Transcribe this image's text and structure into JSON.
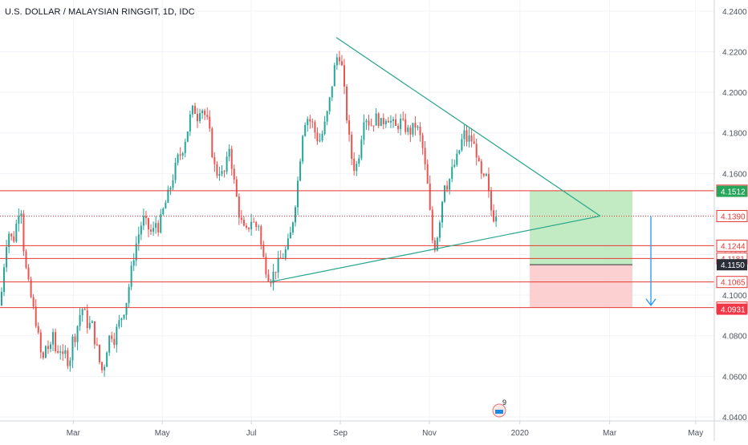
{
  "chart_data": {
    "type": "candlestick",
    "title": "U.S. DOLLAR / MALAYSIAN RINGGIT, 1D, IDC",
    "y_ticks": [
      4.04,
      4.06,
      4.08,
      4.1,
      4.12,
      4.14,
      4.16,
      4.18,
      4.2,
      4.22,
      4.24
    ],
    "y_tick_labels": [
      "4.0400",
      "4.0600",
      "4.0800",
      "4.1000",
      "4.1200",
      "4.1400",
      "4.1600",
      "4.1800",
      "4.2000",
      "4.2200",
      "4.2400"
    ],
    "ylim": [
      4.038,
      4.2455
    ],
    "x_labels": [
      {
        "label": "Mar",
        "pos": 0.098
      },
      {
        "label": "May",
        "pos": 0.217
      },
      {
        "label": "Jul",
        "pos": 0.336
      },
      {
        "label": "Sep",
        "pos": 0.455
      },
      {
        "label": "Nov",
        "pos": 0.574
      },
      {
        "label": "2020",
        "pos": 0.695
      },
      {
        "label": "Mar",
        "pos": 0.815
      },
      {
        "label": "May",
        "pos": 0.93
      }
    ],
    "close_path": [
      [
        0,
        4.095
      ],
      [
        3,
        4.105
      ],
      [
        6,
        4.12
      ],
      [
        10,
        4.132
      ],
      [
        14,
        4.128
      ],
      [
        18,
        4.128
      ],
      [
        22,
        4.14
      ],
      [
        26,
        4.145
      ],
      [
        30,
        4.12
      ],
      [
        34,
        4.108
      ],
      [
        38,
        4.1
      ],
      [
        42,
        4.092
      ],
      [
        46,
        4.085
      ],
      [
        50,
        4.072
      ],
      [
        54,
        4.068
      ],
      [
        58,
        4.078
      ],
      [
        62,
        4.07
      ],
      [
        66,
        4.082
      ],
      [
        70,
        4.07
      ],
      [
        74,
        4.076
      ],
      [
        78,
        4.068
      ],
      [
        82,
        4.072
      ],
      [
        86,
        4.065
      ],
      [
        90,
        4.078
      ],
      [
        94,
        4.08
      ],
      [
        98,
        4.088
      ],
      [
        102,
        4.094
      ],
      [
        106,
        4.09
      ],
      [
        110,
        4.084
      ],
      [
        114,
        4.087
      ],
      [
        118,
        4.078
      ],
      [
        122,
        4.072
      ],
      [
        126,
        4.062
      ],
      [
        130,
        4.066
      ],
      [
        134,
        4.076
      ],
      [
        138,
        4.082
      ],
      [
        142,
        4.078
      ],
      [
        146,
        4.084
      ],
      [
        150,
        4.088
      ],
      [
        154,
        4.092
      ],
      [
        158,
        4.098
      ],
      [
        162,
        4.108
      ],
      [
        166,
        4.118
      ],
      [
        170,
        4.126
      ],
      [
        174,
        4.132
      ],
      [
        178,
        4.138
      ],
      [
        182,
        4.135
      ],
      [
        186,
        4.132
      ],
      [
        190,
        4.13
      ],
      [
        194,
        4.136
      ],
      [
        198,
        4.133
      ],
      [
        202,
        4.14
      ],
      [
        206,
        4.145
      ],
      [
        210,
        4.15
      ],
      [
        214,
        4.156
      ],
      [
        218,
        4.162
      ],
      [
        222,
        4.168
      ],
      [
        226,
        4.17
      ],
      [
        230,
        4.176
      ],
      [
        234,
        4.182
      ],
      [
        238,
        4.19
      ],
      [
        242,
        4.192
      ],
      [
        246,
        4.188
      ],
      [
        250,
        4.194
      ],
      [
        254,
        4.19
      ],
      [
        258,
        4.186
      ],
      [
        262,
        4.178
      ],
      [
        266,
        4.165
      ],
      [
        270,
        4.16
      ],
      [
        274,
        4.162
      ],
      [
        278,
        4.158
      ],
      [
        282,
        4.164
      ],
      [
        286,
        4.174
      ],
      [
        290,
        4.16
      ],
      [
        294,
        4.15
      ],
      [
        298,
        4.14
      ],
      [
        302,
        4.134
      ],
      [
        306,
        4.13
      ],
      [
        310,
        4.134
      ],
      [
        314,
        4.138
      ],
      [
        318,
        4.133
      ],
      [
        322,
        4.136
      ],
      [
        326,
        4.122
      ],
      [
        330,
        4.115
      ],
      [
        334,
        4.11
      ],
      [
        338,
        4.108
      ],
      [
        342,
        4.112
      ],
      [
        346,
        4.115
      ],
      [
        350,
        4.118
      ],
      [
        354,
        4.12
      ],
      [
        358,
        4.124
      ],
      [
        362,
        4.13
      ],
      [
        366,
        4.14
      ],
      [
        370,
        4.152
      ],
      [
        374,
        4.168
      ],
      [
        378,
        4.184
      ],
      [
        382,
        4.188
      ],
      [
        386,
        4.186
      ],
      [
        390,
        4.184
      ],
      [
        394,
        4.178
      ],
      [
        398,
        4.176
      ],
      [
        402,
        4.18
      ],
      [
        406,
        4.186
      ],
      [
        410,
        4.194
      ],
      [
        414,
        4.205
      ],
      [
        418,
        4.215
      ],
      [
        422,
        4.22
      ],
      [
        426,
        4.212
      ],
      [
        430,
        4.196
      ],
      [
        434,
        4.18
      ],
      [
        438,
        4.168
      ],
      [
        442,
        4.162
      ],
      [
        446,
        4.166
      ],
      [
        450,
        4.178
      ],
      [
        454,
        4.19
      ],
      [
        458,
        4.186
      ],
      [
        462,
        4.184
      ],
      [
        466,
        4.186
      ],
      [
        470,
        4.188
      ],
      [
        474,
        4.184
      ],
      [
        478,
        4.186
      ],
      [
        482,
        4.189
      ],
      [
        486,
        4.186
      ],
      [
        490,
        4.184
      ],
      [
        494,
        4.182
      ],
      [
        498,
        4.186
      ],
      [
        502,
        4.184
      ],
      [
        506,
        4.182
      ],
      [
        510,
        4.18
      ],
      [
        514,
        4.182
      ],
      [
        518,
        4.184
      ],
      [
        522,
        4.18
      ],
      [
        526,
        4.174
      ],
      [
        530,
        4.162
      ],
      [
        534,
        4.15
      ],
      [
        538,
        4.128
      ],
      [
        542,
        4.124
      ],
      [
        546,
        4.132
      ],
      [
        550,
        4.144
      ],
      [
        554,
        4.156
      ],
      [
        558,
        4.154
      ],
      [
        562,
        4.16
      ],
      [
        566,
        4.164
      ],
      [
        570,
        4.168
      ],
      [
        574,
        4.174
      ],
      [
        578,
        4.18
      ],
      [
        582,
        4.176
      ],
      [
        586,
        4.178
      ],
      [
        590,
        4.174
      ],
      [
        594,
        4.17
      ],
      [
        598,
        4.16
      ],
      [
        602,
        4.156
      ],
      [
        606,
        4.158
      ],
      [
        610,
        4.146
      ],
      [
        614,
        4.138
      ],
      [
        618,
        4.141
      ],
      [
        621,
        4.139
      ]
    ],
    "support_resistance_levels": [
      {
        "value": 4.1515,
        "label": "4.1515",
        "color": "#e53935",
        "dotted": false
      },
      {
        "value": 4.139,
        "label": "4.1390",
        "color": "#e53935",
        "dotted": true
      },
      {
        "value": 4.1244,
        "label": "4.1244",
        "color": "#e53935",
        "dotted": false
      },
      {
        "value": 4.1181,
        "label": "4.1181",
        "color": "#e53935",
        "dotted": false
      },
      {
        "value": 4.1065,
        "label": "4.1065",
        "color": "#e53935",
        "dotted": false
      },
      {
        "value": 4.0939,
        "label": "4.0939",
        "color": "#e53935",
        "dotted": false
      }
    ],
    "price_tags": [
      {
        "value": 4.1512,
        "label": "4.1512",
        "bg": "#26a65b"
      },
      {
        "value": 4.115,
        "label": "4.1150",
        "bg": "#2a2e39"
      },
      {
        "value": 4.0931,
        "label": "4.0931",
        "bg": "#f23645"
      }
    ],
    "triangle": {
      "upper": [
        [
          419,
          4.227
        ],
        [
          748,
          4.139
        ]
      ],
      "lower": [
        [
          336,
          4.1065
        ],
        [
          748,
          4.139
        ]
      ],
      "color": "#26a68a"
    },
    "position": {
      "x_start": 660,
      "x_end": 788,
      "entry": 4.115,
      "target_top": 4.1515,
      "stop_bottom": 4.0939,
      "profit_color": "#b9e7b9",
      "loss_color": "#fbc8c8"
    },
    "arrow": {
      "x": 811,
      "from": 4.139,
      "to": 4.095,
      "color": "#2196f3"
    },
    "colors": {
      "up": "#26a69a",
      "down": "#ef5350",
      "grid": "#f0f3fa",
      "axis_text": "#4c525e"
    },
    "badge": {
      "count": "9"
    }
  }
}
